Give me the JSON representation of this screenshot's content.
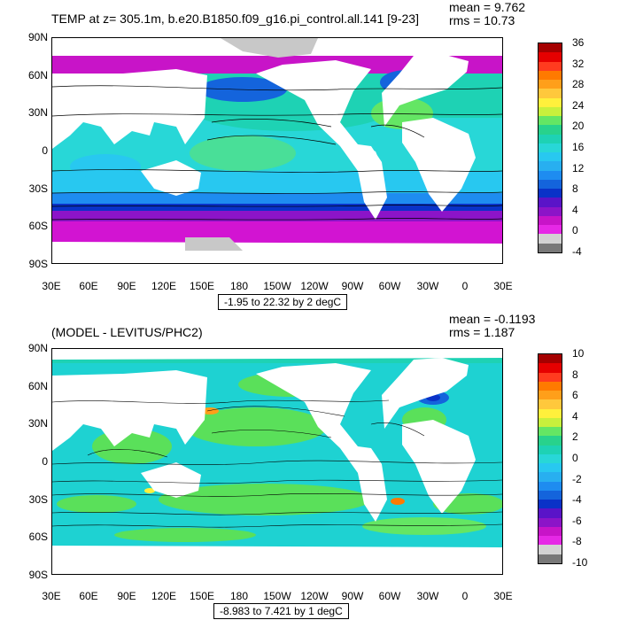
{
  "panels": [
    {
      "title": "TEMP at z= 305.1m, b.e20.B1850.f09_g16.pi_control.all.141 [9-23]",
      "mean": "mean = 9.762",
      "rms": "rms = 10.73",
      "range": "-1.95 to 22.32 by 2 degC",
      "lat_ticks": [
        "90N",
        "60N",
        "30N",
        "0",
        "30S",
        "60S",
        "90S"
      ],
      "lon_ticks": [
        "30E",
        "60E",
        "90E",
        "120E",
        "150E",
        "180",
        "150W",
        "120W",
        "90W",
        "60W",
        "30W",
        "0",
        "30E"
      ],
      "colorbar": {
        "labels": [
          "36",
          "32",
          "28",
          "24",
          "20",
          "16",
          "12",
          "8",
          "4",
          "0",
          "-4"
        ],
        "colors": [
          "#a50000",
          "#e60000",
          "#ff3b1f",
          "#ff7a00",
          "#ff9f1a",
          "#ffc83c",
          "#fff03c",
          "#c8f03c",
          "#64e664",
          "#28d28c",
          "#1ed2b4",
          "#28d7d7",
          "#28c8f0",
          "#28aff0",
          "#1e8cf0",
          "#1464dc",
          "#0a32c8",
          "#5a14c8",
          "#8c14c8",
          "#c814c8",
          "#e628e6",
          "#d2d2d2",
          "#787878"
        ]
      },
      "map_colors": {
        "cold": "#d214d2",
        "ice": "#c8c8c8"
      }
    },
    {
      "title": "(MODEL - LEVITUS/PHC2)",
      "mean": "mean = -0.1193",
      "rms": "rms = 1.187",
      "range": "-8.983 to 7.421 by 1 degC",
      "lat_ticks": [
        "90N",
        "60N",
        "30N",
        "0",
        "30S",
        "60S",
        "90S"
      ],
      "lon_ticks": [
        "30E",
        "60E",
        "90E",
        "120E",
        "150E",
        "180",
        "150W",
        "120W",
        "90W",
        "60W",
        "30W",
        "0",
        "30E"
      ],
      "colorbar": {
        "labels": [
          "10",
          "8",
          "6",
          "4",
          "2",
          "0",
          "-2",
          "-4",
          "-6",
          "-8",
          "-10"
        ],
        "colors": [
          "#a50000",
          "#e60000",
          "#ff3b1f",
          "#ff7a00",
          "#ff9f1a",
          "#ffc83c",
          "#fff03c",
          "#c8f03c",
          "#64e664",
          "#28d28c",
          "#1ed2b4",
          "#28d7d7",
          "#28c8f0",
          "#28aff0",
          "#1e8cf0",
          "#1464dc",
          "#0a32c8",
          "#5a14c8",
          "#8c14c8",
          "#c814c8",
          "#e628e6",
          "#d2d2d2",
          "#787878"
        ]
      },
      "map_colors": {
        "base": "#5ae05a",
        "alt": "#1ed2d2"
      }
    }
  ]
}
